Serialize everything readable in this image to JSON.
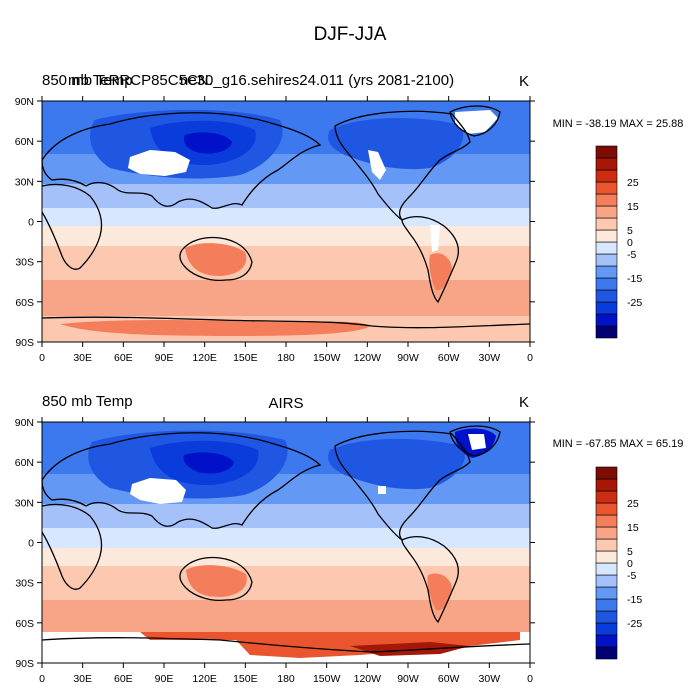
{
  "figure_title": "DJF-JJA",
  "colors": {
    "ocean": "#e3efff",
    "coast": "#000000",
    "missing": "#ffffff",
    "levels": [
      "#020074",
      "#0012c9",
      "#0a3bdb",
      "#1f57e3",
      "#3c79ee",
      "#6398f4",
      "#a4c1f9",
      "#d7e7ff",
      "#fde8dc",
      "#fcc8b0",
      "#f8a486",
      "#f47e5b",
      "#e8552f",
      "#cc2c10",
      "#a51807",
      "#7d0c04"
    ]
  },
  "chart_data": [
    {
      "type": "heatmap",
      "left_label": "850 mb Temp",
      "center_label": "",
      "header_overlay": "ne30_g16.sehires24.011 (yrs 2081-2100)",
      "header_overlay_garbled": "mb TeRRCP85C5CN.",
      "units": "K",
      "stats": "MIN = -38.19 MAX =  25.88",
      "x_ticks": [
        "0",
        "30E",
        "60E",
        "90E",
        "120E",
        "150E",
        "180",
        "150W",
        "120W",
        "90W",
        "60W",
        "30W",
        "0"
      ],
      "y_ticks": [
        "90N",
        "60N",
        "30N",
        "0",
        "30S",
        "60S",
        "90S"
      ],
      "xlim": [
        0,
        360
      ],
      "ylim": [
        -90,
        90
      ],
      "colorbar_levels": [
        -35,
        -30,
        -25,
        -20,
        -15,
        -10,
        -5,
        0,
        5,
        10,
        15,
        20,
        25,
        30,
        35
      ],
      "colorbar_labels": [
        "25",
        "15",
        "5",
        "0",
        "-5",
        "-15",
        "-25"
      ]
    },
    {
      "type": "heatmap",
      "left_label": "850 mb Temp",
      "center_label": "AIRS",
      "header_overlay": "",
      "units": "K",
      "stats": "MIN = -67.85 MAX =  65.19",
      "x_ticks": [
        "0",
        "30E",
        "60E",
        "90E",
        "120E",
        "150E",
        "180",
        "150W",
        "120W",
        "90W",
        "60W",
        "30W",
        "0"
      ],
      "y_ticks": [
        "90N",
        "60N",
        "30N",
        "0",
        "30S",
        "60S",
        "90S"
      ],
      "xlim": [
        0,
        360
      ],
      "ylim": [
        -90,
        90
      ],
      "colorbar_levels": [
        -35,
        -30,
        -25,
        -20,
        -15,
        -10,
        -5,
        0,
        5,
        10,
        15,
        20,
        25,
        30,
        35
      ],
      "colorbar_labels": [
        "25",
        "15",
        "5",
        "0",
        "-5",
        "-15",
        "-25"
      ]
    }
  ]
}
